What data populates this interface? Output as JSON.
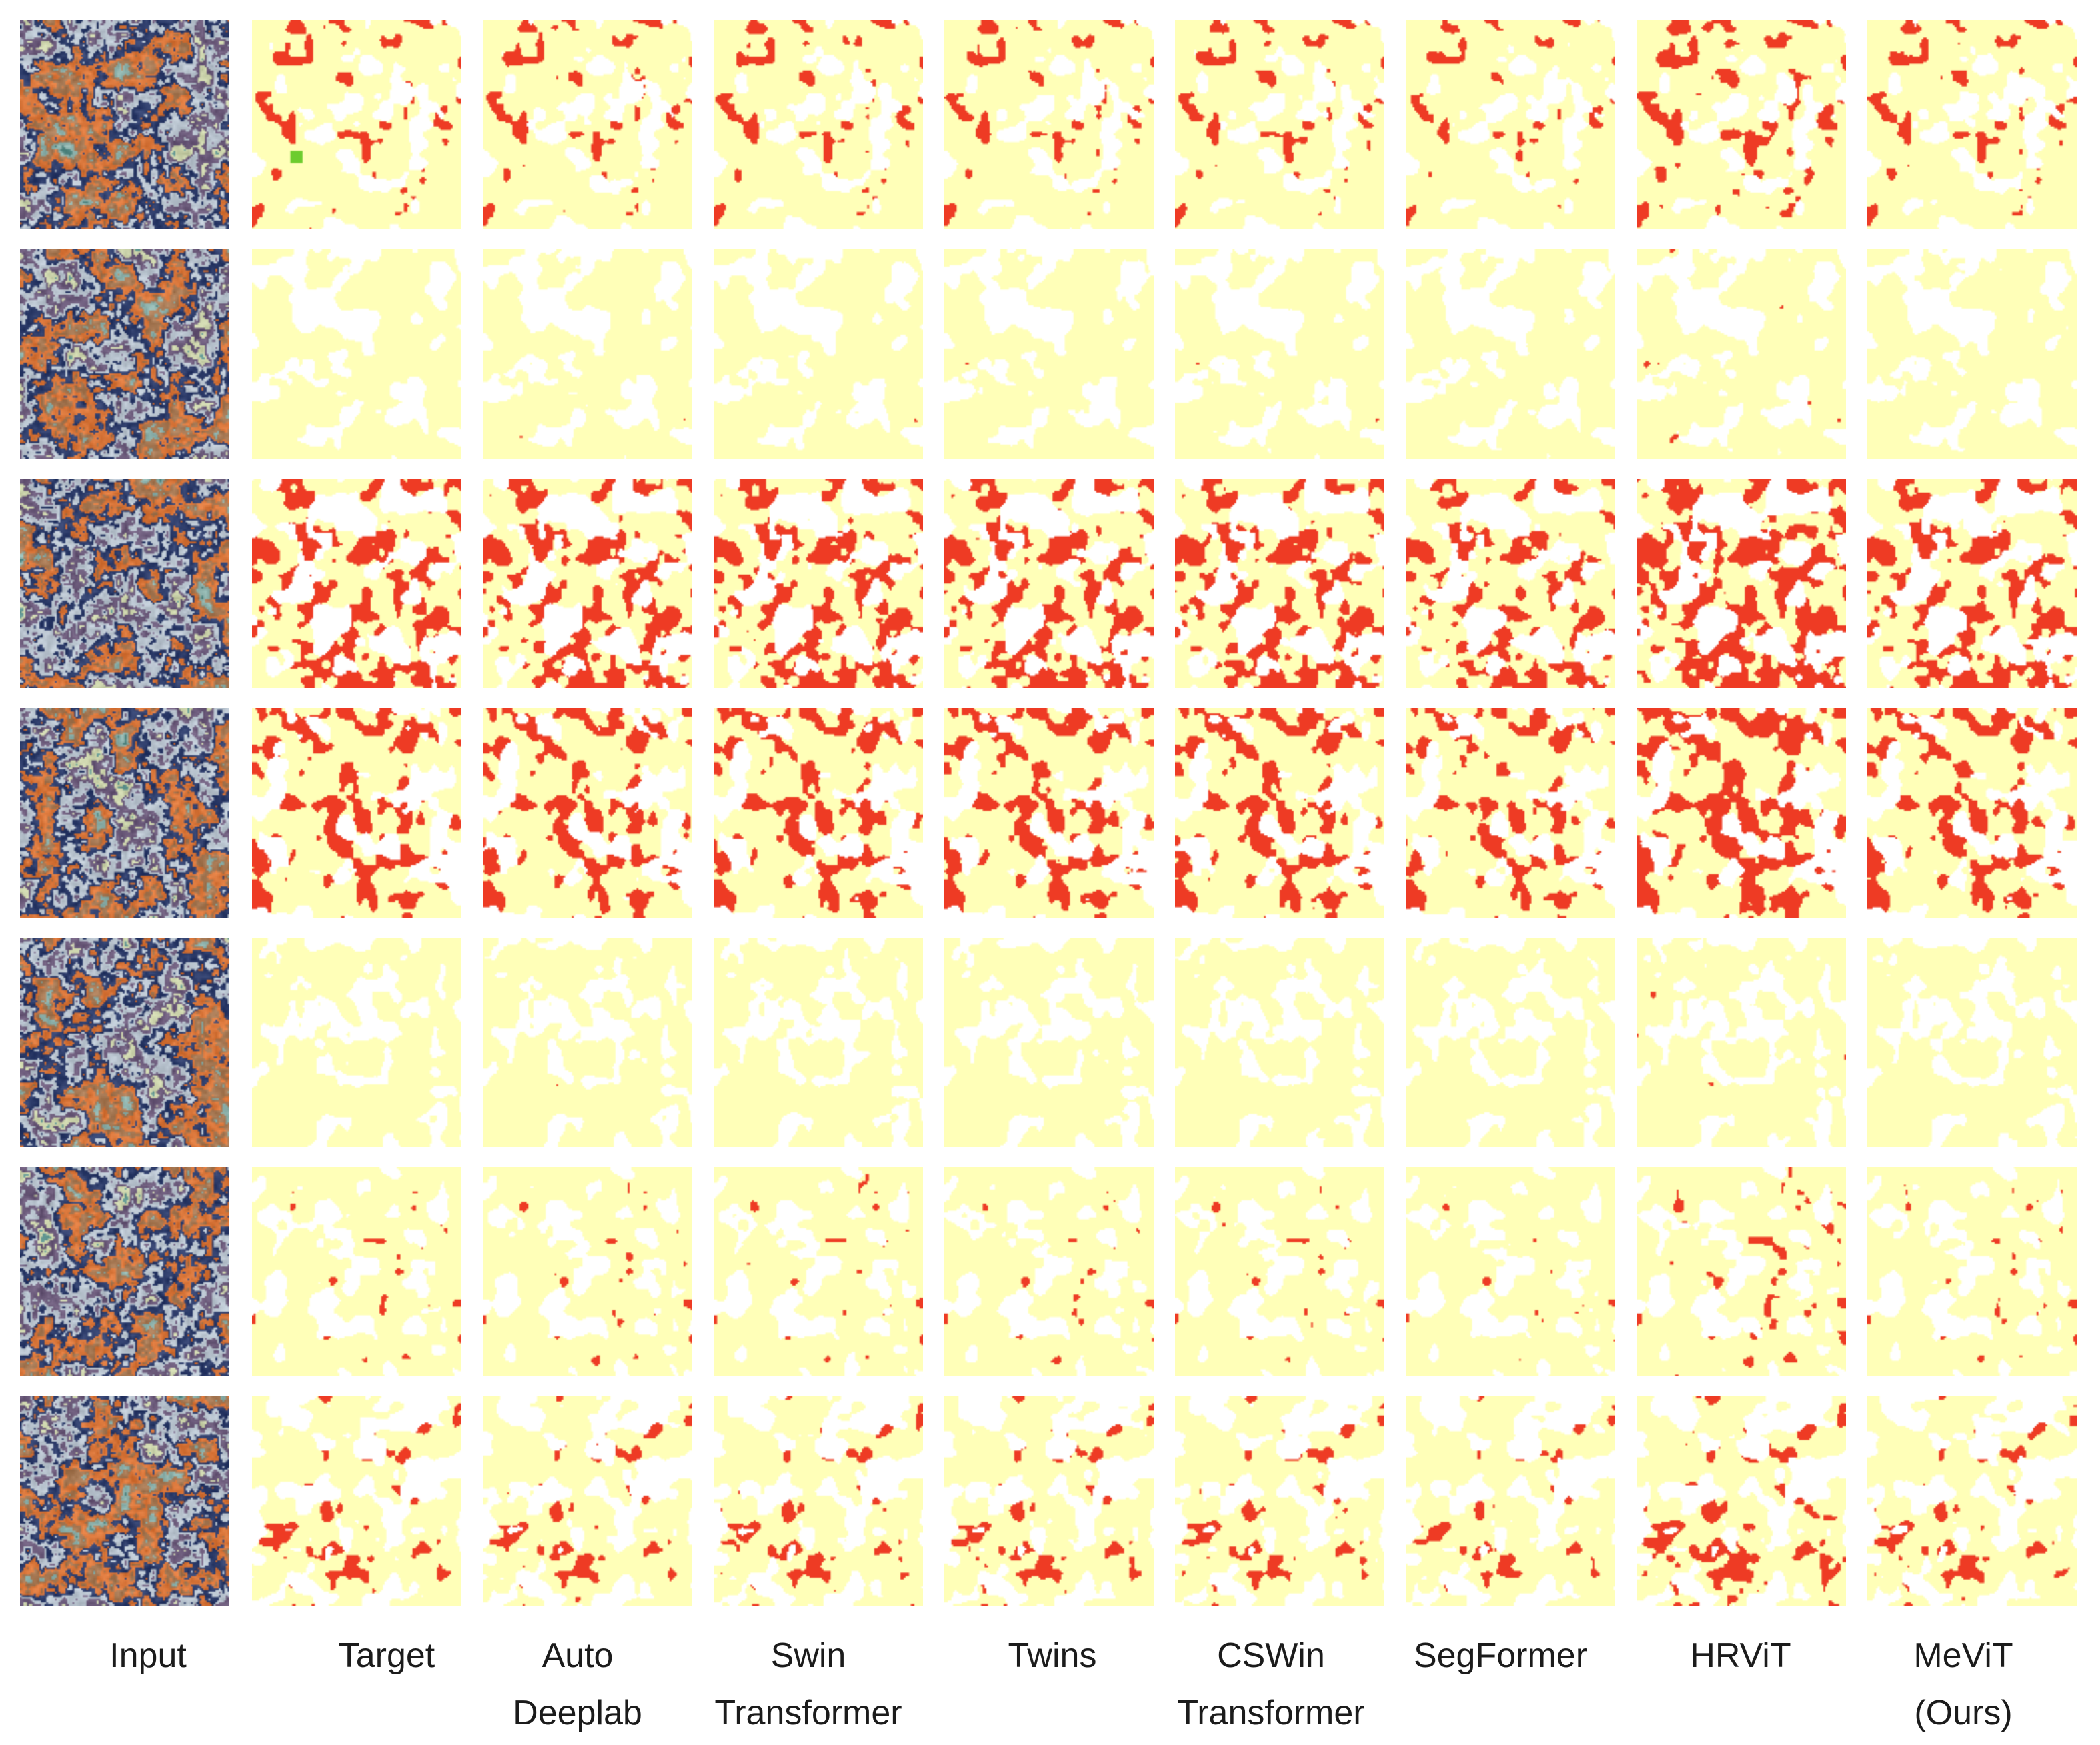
{
  "figure": {
    "columns": [
      {
        "id": "input",
        "label": [
          "Input"
        ]
      },
      {
        "id": "target",
        "label": [
          "Target"
        ]
      },
      {
        "id": "autodeeplab",
        "label": [
          "Auto",
          "Deeplab"
        ]
      },
      {
        "id": "swin",
        "label": [
          "Swin",
          "Transformer"
        ]
      },
      {
        "id": "twins",
        "label": [
          "Twins"
        ]
      },
      {
        "id": "cswin",
        "label": [
          "CSWin",
          "Transformer"
        ]
      },
      {
        "id": "segformer",
        "label": [
          "SegFormer"
        ]
      },
      {
        "id": "hrvit",
        "label": [
          "HRViT"
        ]
      },
      {
        "id": "mevit",
        "label": [
          "MeViT",
          "(Ours)"
        ]
      }
    ],
    "rows": 7,
    "colors": {
      "background": "#ffffff",
      "class_a": "#ffffb8",
      "class_b": "#ee3b24",
      "class_c": "#6ccc2e",
      "input_palette": [
        "#5a8f8a",
        "#8fb3ad",
        "#a87a55",
        "#d9763a",
        "#2e3d6b",
        "#b9c4cf",
        "#6b5a7a",
        "#c8d0a8"
      ]
    }
  }
}
